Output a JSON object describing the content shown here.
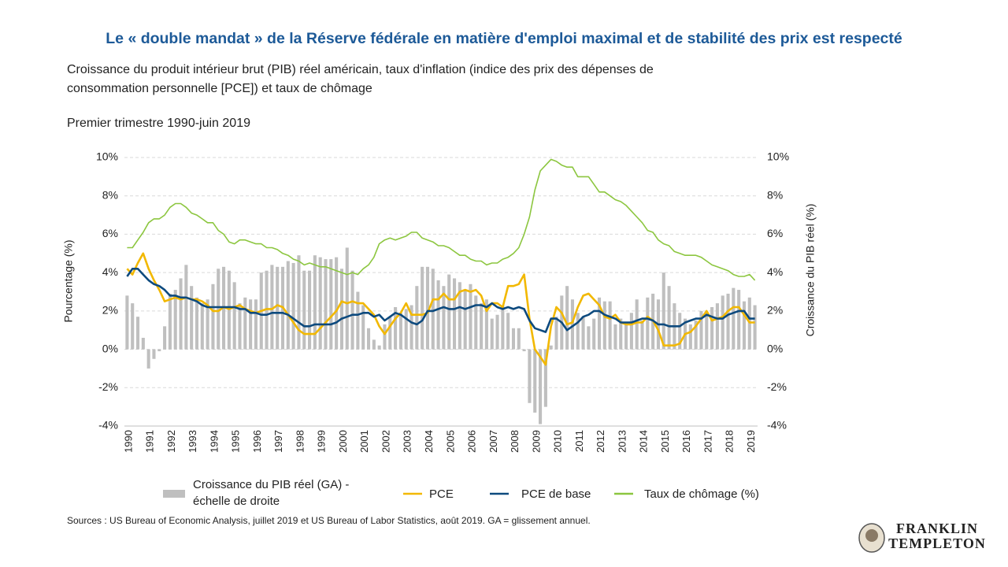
{
  "chart_data": {
    "type": "combo",
    "title": "Le « double mandat » de la Réserve fédérale en matière d'emploi maximal et de stabilité des prix est respecté",
    "subtitle": [
      "Croissance du produit intérieur brut (PIB) réel américain, taux d'inflation (indice des prix des dépenses de",
      "consommation personnelle [PCE]) et taux de chômage",
      "Premier trimestre 1990-juin 2019"
    ],
    "y_label": "Pourcentage (%)",
    "y2_label": "Croissance du PIB réel (%)",
    "categories": [
      "1990",
      null,
      null,
      null,
      "1991",
      null,
      null,
      null,
      "1992",
      null,
      null,
      null,
      "1993",
      null,
      null,
      null,
      "1994",
      null,
      null,
      null,
      "1995",
      null,
      null,
      null,
      "1996",
      null,
      null,
      null,
      "1997",
      null,
      null,
      null,
      "1998",
      null,
      null,
      null,
      "1999",
      null,
      null,
      null,
      "2000",
      null,
      null,
      null,
      "2001",
      null,
      null,
      null,
      "2002",
      null,
      null,
      null,
      "2003",
      null,
      null,
      null,
      "2004",
      null,
      null,
      null,
      "2005",
      null,
      null,
      null,
      "2006",
      null,
      null,
      null,
      "2007",
      null,
      null,
      null,
      "2008",
      null,
      null,
      null,
      "2009",
      null,
      null,
      null,
      "2010",
      null,
      null,
      null,
      "2011",
      null,
      null,
      null,
      "2012",
      null,
      null,
      null,
      "2013",
      null,
      null,
      null,
      "2014",
      null,
      null,
      null,
      "2015",
      null,
      null,
      null,
      "2016",
      null,
      null,
      null,
      "2017",
      null,
      null,
      null,
      "2018",
      null,
      null,
      null,
      "2019",
      null
    ],
    "ylim": [
      -4,
      10
    ],
    "yticks": [
      {
        "value": -4,
        "label": "-4%"
      },
      {
        "value": -2,
        "label": "-2%"
      },
      {
        "value": 0,
        "label": "0%"
      },
      {
        "value": 2,
        "label": "2%"
      },
      {
        "value": 4,
        "label": "4%"
      },
      {
        "value": 6,
        "label": "6%"
      },
      {
        "value": 8,
        "label": "8%"
      },
      {
        "value": 10,
        "label": "10%"
      }
    ],
    "y2lim": [
      -4,
      10
    ],
    "y2ticks": [
      {
        "value": -4,
        "label": "-4%"
      },
      {
        "value": -2,
        "label": "-2%"
      },
      {
        "value": 0,
        "label": "0%"
      },
      {
        "value": 2,
        "label": "2%"
      },
      {
        "value": 4,
        "label": "4%"
      },
      {
        "value": 6,
        "label": "6%"
      },
      {
        "value": 8,
        "label": "8%"
      },
      {
        "value": 10,
        "label": "10%"
      }
    ],
    "grid": true,
    "series": [
      {
        "name": "Croissance du PIB réel (GA) - échelle de droite",
        "type": "bar",
        "axis": "y2",
        "color": "#bfbfbf",
        "values": [
          2.8,
          2.4,
          1.7,
          0.6,
          -1.0,
          -0.5,
          -0.1,
          1.2,
          2.9,
          3.1,
          3.7,
          4.4,
          3.3,
          2.7,
          2.4,
          2.6,
          3.4,
          4.2,
          4.3,
          4.1,
          3.5,
          2.4,
          2.7,
          2.6,
          2.6,
          4.0,
          4.1,
          4.4,
          4.3,
          4.3,
          4.6,
          4.5,
          4.9,
          4.1,
          4.1,
          4.9,
          4.8,
          4.7,
          4.7,
          4.8,
          4.2,
          5.3,
          4.1,
          3.0,
          2.3,
          1.1,
          0.5,
          0.2,
          1.3,
          1.7,
          2.2,
          1.9,
          2.1,
          2.3,
          3.3,
          4.3,
          4.3,
          4.2,
          3.6,
          3.3,
          3.9,
          3.7,
          3.5,
          3.1,
          3.4,
          2.8,
          2.4,
          2.6,
          1.6,
          1.8,
          2.3,
          1.9,
          1.1,
          1.1,
          -0.1,
          -2.8,
          -3.3,
          -3.9,
          -3.0,
          0.2,
          1.7,
          2.8,
          3.3,
          2.6,
          1.9,
          1.7,
          1.2,
          1.6,
          2.7,
          2.5,
          2.5,
          1.3,
          1.6,
          1.4,
          1.9,
          2.6,
          1.5,
          2.7,
          2.9,
          2.6,
          4.0,
          3.3,
          2.4,
          1.9,
          1.6,
          1.3,
          1.5,
          2.0,
          1.9,
          2.2,
          2.4,
          2.8,
          2.9,
          3.2,
          3.1,
          2.5,
          2.7,
          2.3
        ]
      },
      {
        "name": "PCE",
        "type": "line",
        "color": "#f2b800",
        "values": [
          4.2,
          3.9,
          4.5,
          5.0,
          4.2,
          3.6,
          3.1,
          2.5,
          2.6,
          2.7,
          2.6,
          2.7,
          2.6,
          2.6,
          2.5,
          2.3,
          2.0,
          2.0,
          2.2,
          2.1,
          2.2,
          2.3,
          2.1,
          2.0,
          1.9,
          2.0,
          2.1,
          2.1,
          2.3,
          2.2,
          1.8,
          1.4,
          1.0,
          0.8,
          0.8,
          0.8,
          1.1,
          1.4,
          1.7,
          2.0,
          2.5,
          2.4,
          2.5,
          2.4,
          2.4,
          2.1,
          1.8,
          1.2,
          0.8,
          1.2,
          1.6,
          1.9,
          2.4,
          1.8,
          1.8,
          1.8,
          1.9,
          2.6,
          2.6,
          2.9,
          2.6,
          2.6,
          3.0,
          3.1,
          3.0,
          3.1,
          2.8,
          2.0,
          2.4,
          2.4,
          2.2,
          3.3,
          3.3,
          3.4,
          3.9,
          1.6,
          0.0,
          -0.4,
          -0.8,
          1.2,
          2.2,
          1.9,
          1.3,
          1.4,
          2.2,
          2.8,
          2.9,
          2.6,
          2.3,
          1.7,
          1.6,
          1.8,
          1.4,
          1.3,
          1.3,
          1.4,
          1.4,
          1.7,
          1.5,
          1.0,
          0.2,
          0.2,
          0.2,
          0.3,
          0.8,
          0.9,
          1.2,
          1.6,
          2.0,
          1.5,
          1.6,
          1.7,
          2.0,
          2.2,
          2.2,
          1.8,
          1.4,
          1.4
        ]
      },
      {
        "name": "PCE de base",
        "type": "line",
        "color": "#0d4a7e",
        "values": [
          3.8,
          4.2,
          4.2,
          3.9,
          3.6,
          3.4,
          3.3,
          3.1,
          2.8,
          2.8,
          2.7,
          2.7,
          2.6,
          2.5,
          2.3,
          2.2,
          2.2,
          2.2,
          2.2,
          2.2,
          2.2,
          2.1,
          2.1,
          1.9,
          1.9,
          1.8,
          1.8,
          1.9,
          1.9,
          1.9,
          1.8,
          1.6,
          1.4,
          1.2,
          1.2,
          1.3,
          1.3,
          1.3,
          1.3,
          1.4,
          1.6,
          1.7,
          1.8,
          1.8,
          1.9,
          1.9,
          1.7,
          1.8,
          1.5,
          1.7,
          1.9,
          1.8,
          1.6,
          1.4,
          1.3,
          1.5,
          2.0,
          2.0,
          2.1,
          2.2,
          2.1,
          2.1,
          2.2,
          2.1,
          2.2,
          2.3,
          2.3,
          2.2,
          2.4,
          2.2,
          2.1,
          2.2,
          2.1,
          2.2,
          2.1,
          1.5,
          1.1,
          1.0,
          0.9,
          1.6,
          1.6,
          1.4,
          1.0,
          1.2,
          1.4,
          1.7,
          1.8,
          2.0,
          2.0,
          1.8,
          1.7,
          1.6,
          1.4,
          1.4,
          1.4,
          1.5,
          1.6,
          1.6,
          1.5,
          1.3,
          1.3,
          1.2,
          1.2,
          1.2,
          1.4,
          1.5,
          1.6,
          1.6,
          1.8,
          1.7,
          1.6,
          1.6,
          1.8,
          1.9,
          2.0,
          2.0,
          1.6,
          1.6
        ]
      },
      {
        "name": "Taux de chômage (%)",
        "type": "line",
        "color": "#8cc63f",
        "values": [
          5.3,
          5.3,
          5.7,
          6.1,
          6.6,
          6.8,
          6.8,
          7.0,
          7.4,
          7.6,
          7.6,
          7.4,
          7.1,
          7.0,
          6.8,
          6.6,
          6.6,
          6.2,
          6.0,
          5.6,
          5.5,
          5.7,
          5.7,
          5.6,
          5.5,
          5.5,
          5.3,
          5.3,
          5.2,
          5.0,
          4.9,
          4.7,
          4.6,
          4.4,
          4.5,
          4.4,
          4.3,
          4.3,
          4.2,
          4.1,
          4.0,
          3.9,
          4.0,
          3.9,
          4.2,
          4.4,
          4.8,
          5.5,
          5.7,
          5.8,
          5.7,
          5.8,
          5.9,
          6.1,
          6.1,
          5.8,
          5.7,
          5.6,
          5.4,
          5.4,
          5.3,
          5.1,
          4.9,
          4.9,
          4.7,
          4.6,
          4.6,
          4.4,
          4.5,
          4.5,
          4.7,
          4.8,
          5.0,
          5.3,
          6.0,
          6.9,
          8.3,
          9.3,
          9.6,
          9.9,
          9.8,
          9.6,
          9.5,
          9.5,
          9.0,
          9.0,
          9.0,
          8.6,
          8.2,
          8.2,
          8.0,
          7.8,
          7.7,
          7.5,
          7.2,
          6.9,
          6.6,
          6.2,
          6.1,
          5.7,
          5.5,
          5.4,
          5.1,
          5.0,
          4.9,
          4.9,
          4.9,
          4.8,
          4.6,
          4.4,
          4.3,
          4.2,
          4.1,
          3.9,
          3.8,
          3.8,
          3.9,
          3.6
        ]
      }
    ],
    "note": "Sources : US Bureau of Economic Analysis, juillet 2019 et US Bureau of Labor Statistics, août 2019. GA = glissement annuel."
  },
  "logo": [
    "FRANKLIN",
    "TEMPLETON"
  ]
}
